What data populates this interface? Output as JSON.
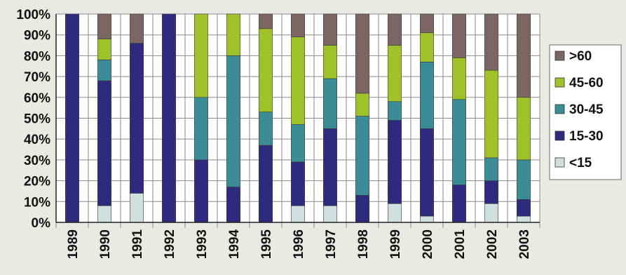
{
  "chart_data": {
    "type": "bar",
    "stacked": true,
    "percent": true,
    "title": "",
    "xlabel": "",
    "ylabel": "",
    "ylim": [
      0,
      100
    ],
    "yticks": [
      "0%",
      "10%",
      "20%",
      "30%",
      "40%",
      "50%",
      "60%",
      "70%",
      "80%",
      "90%",
      "100%"
    ],
    "grid": true,
    "legend_position": "right",
    "categories": [
      "1989",
      "1990",
      "1991",
      "1992",
      "1993",
      "1994",
      "1995",
      "1996",
      "1997",
      "1998",
      "1999",
      "2000",
      "2001",
      "2002",
      "2003"
    ],
    "series": [
      {
        "name": "<15",
        "color": "#cfe0e0",
        "values": [
          0,
          8,
          14,
          0,
          0,
          0,
          0,
          8,
          8,
          0,
          9,
          3,
          0,
          9,
          3
        ]
      },
      {
        "name": "15-30",
        "color": "#2e2a80",
        "values": [
          100,
          60,
          72,
          100,
          30,
          17,
          37,
          21,
          37,
          13,
          40,
          42,
          18,
          11,
          8
        ]
      },
      {
        "name": "30-45",
        "color": "#3a8c96",
        "values": [
          0,
          10,
          0,
          0,
          30,
          63,
          16,
          18,
          24,
          38,
          9,
          32,
          41,
          11,
          19
        ]
      },
      {
        "name": "45-60",
        "color": "#9fc22a",
        "values": [
          0,
          10,
          0,
          0,
          40,
          20,
          40,
          42,
          16,
          11,
          27,
          14,
          20,
          42,
          30
        ]
      },
      {
        "name": ">60",
        "color": "#7b6664",
        "values": [
          0,
          12,
          14,
          0,
          0,
          0,
          7,
          11,
          15,
          38,
          15,
          9,
          21,
          27,
          40
        ]
      }
    ],
    "legend_order": [
      ">60",
      "45-60",
      "30-45",
      "15-30",
      "<15"
    ]
  }
}
